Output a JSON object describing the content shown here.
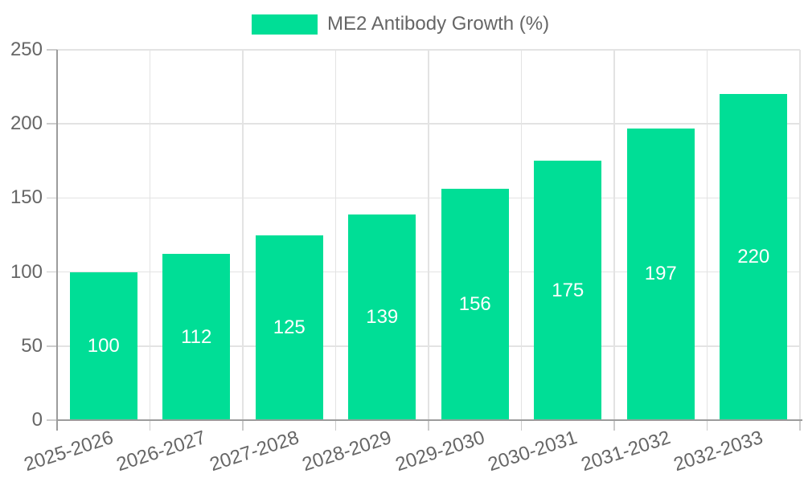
{
  "chart_data": {
    "type": "bar",
    "title": "ME2 Antibody Growth (%)",
    "categories": [
      "2025-2026",
      "2026-2027",
      "2027-2028",
      "2028-2029",
      "2029-2030",
      "2030-2031",
      "2031-2032",
      "2032-2033"
    ],
    "values": [
      100,
      112,
      125,
      139,
      156,
      175,
      197,
      220
    ],
    "value_labels": [
      "100",
      "112",
      "125",
      "139",
      "156",
      "175",
      "197",
      "220"
    ],
    "xlabel": "",
    "ylabel": "",
    "ylim": [
      0,
      250
    ],
    "yticks": [
      0,
      50,
      100,
      150,
      200,
      250
    ],
    "legend_position": "top",
    "grid": true,
    "x_label_rotation_deg": -18,
    "colors": {
      "bar": "#00de96",
      "value_label": "#ffffff",
      "axis_text": "#666666",
      "axis_line": "#9c9c9c",
      "gridline": "#e3e3e3",
      "tick": "#cccccc",
      "background": "#ffffff"
    }
  }
}
